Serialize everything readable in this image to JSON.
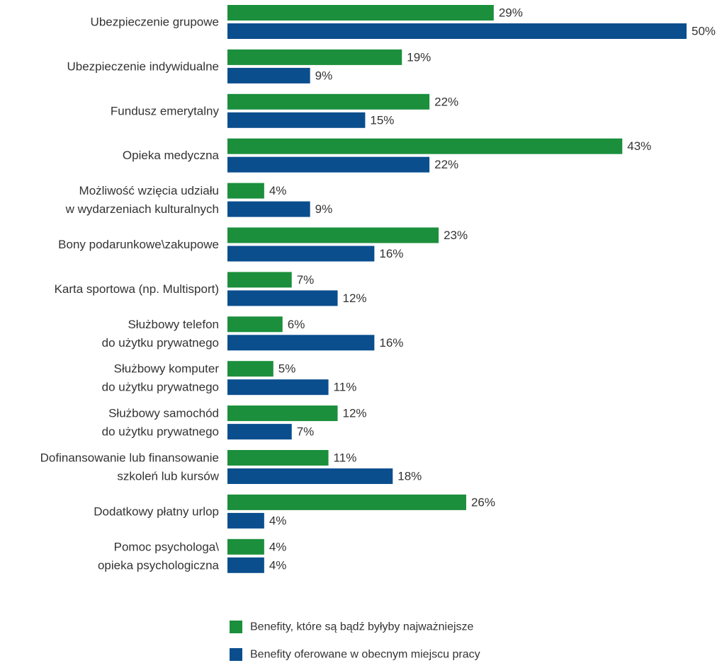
{
  "chart_data": {
    "type": "bar",
    "orientation": "horizontal",
    "categories": [
      [
        "Ubezpieczenie grupowe"
      ],
      [
        "Ubezpieczenie indywidualne"
      ],
      [
        "Fundusz emerytalny"
      ],
      [
        "Opieka medyczna"
      ],
      [
        "Możliwość wzięcia udziału",
        "w wydarzeniach kulturalnych"
      ],
      [
        "Bony podarunkowe\\zakupowe"
      ],
      [
        "Karta sportowa (np. Multisport)"
      ],
      [
        "Służbowy telefon",
        "do użytku prywatnego"
      ],
      [
        "Służbowy komputer",
        "do użytku prywatnego"
      ],
      [
        "Służbowy samochód",
        "do użytku prywatnego"
      ],
      [
        "Dofinansowanie lub finansowanie",
        "szkoleń lub kursów"
      ],
      [
        "Dodatkowy płatny urlop"
      ],
      [
        "Pomoc psychologa\\",
        "opieka psychologiczna"
      ]
    ],
    "series": [
      {
        "name": "Benefity, które są bądź byłyby najważniejsze",
        "color": "#1b8f3c",
        "values": [
          29,
          19,
          22,
          43,
          4,
          23,
          7,
          6,
          5,
          12,
          11,
          26,
          4
        ]
      },
      {
        "name": "Benefity oferowane w obecnym miejscu pracy",
        "color": "#0a4e8e",
        "values": [
          50,
          9,
          15,
          22,
          9,
          16,
          12,
          16,
          11,
          7,
          18,
          4,
          4
        ]
      }
    ],
    "value_suffix": "%",
    "xlim": [
      0,
      50
    ],
    "grid": false,
    "legend_position": "bottom"
  }
}
